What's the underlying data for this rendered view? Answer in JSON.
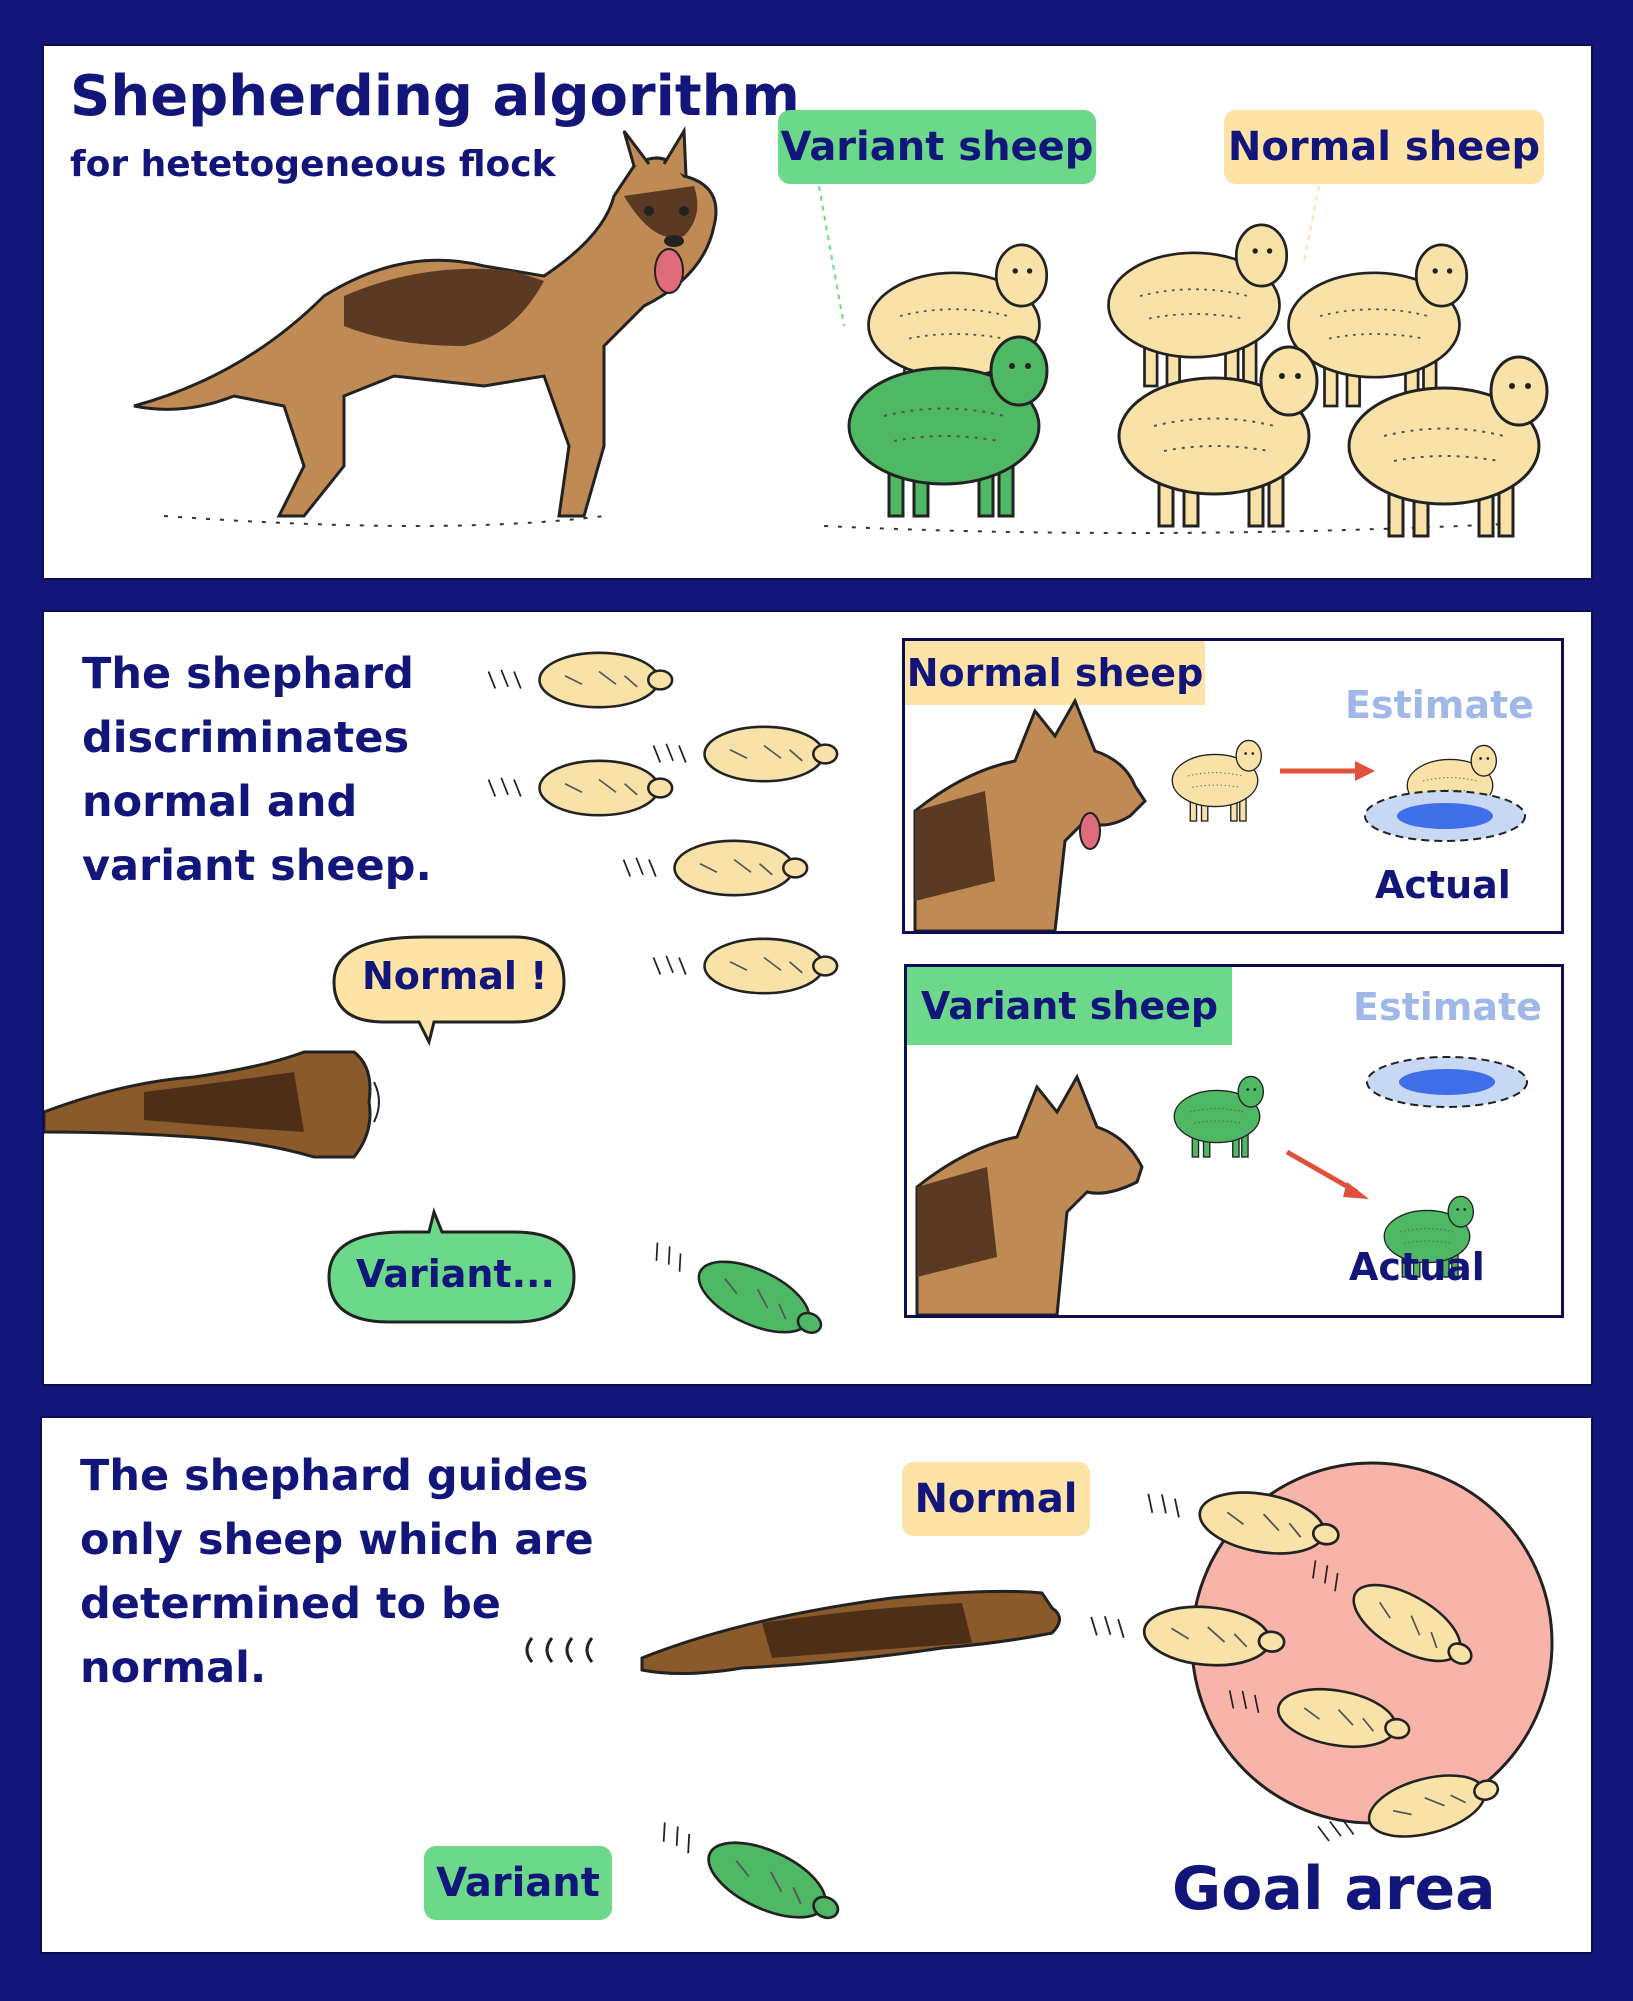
{
  "panel1": {
    "title": "Shepherding algorithm",
    "subtitle": "for hetetogeneous flock",
    "variant_label": "Variant sheep",
    "normal_label": "Normal sheep"
  },
  "panel2": {
    "text_lines": [
      "The shephard",
      "discriminates",
      "normal and",
      "variant sheep."
    ],
    "bubble_normal": "Normal !",
    "bubble_variant": "Variant...",
    "inset_normal": {
      "heading": "Normal sheep",
      "estimate": "Estimate",
      "actual": "Actual"
    },
    "inset_variant": {
      "heading": "Variant sheep",
      "estimate": "Estimate",
      "actual": "Actual"
    }
  },
  "panel3": {
    "text_lines": [
      "The shephard guides",
      "only sheep which are",
      "determined to be",
      "normal."
    ],
    "normal_label": "Normal",
    "variant_label": "Variant",
    "goal_label": "Goal area"
  },
  "colors": {
    "border": "#12157a",
    "text": "#12157a",
    "variant_green": "#6cd98a",
    "sheep_green": "#4fb865",
    "normal_yellow": "#fde3a5",
    "sheep_cream": "#f8e2a8",
    "goal_pink": "#f8b4a8",
    "estimate_blue": "#9fb8e8",
    "dog_brown": "#c08a55",
    "dog_dark": "#5a3a22",
    "arrow_red": "#e0503a"
  }
}
